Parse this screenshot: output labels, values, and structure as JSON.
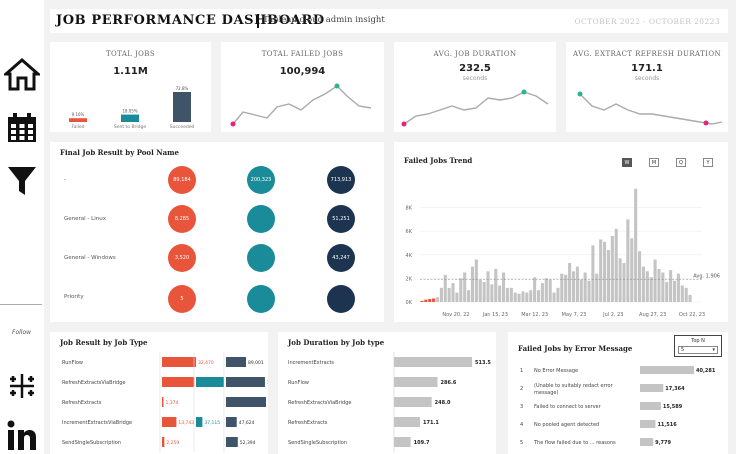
{
  "sidebar": {
    "icons": [
      "home-icon",
      "calendar-icon",
      "filter-icon",
      "tableau-icon",
      "linkedin-icon"
    ],
    "follow_label": "Follow"
  },
  "header": {
    "title": "JOB PERFORMANCE DASHBOARD",
    "subtitle": "Tableau cloud admin insight",
    "date_range": "OCTOBER 2022 - OCTOBER 20223"
  },
  "kpis": {
    "total_jobs": {
      "title": "TOTAL JOBS",
      "value": "1.11M",
      "bars": [
        {
          "label": "Failed",
          "pct": "9.16%",
          "value": 9.16,
          "color": "#e8553a"
        },
        {
          "label": "Sent to Bridge",
          "pct": "18.05%",
          "value": 18.05,
          "color": "#1a8c99"
        },
        {
          "label": "Succeeded",
          "pct": "72.8%",
          "value": 72.8,
          "color": "#3f5468"
        }
      ]
    },
    "failed_jobs": {
      "title": "TOTAL FAILED JOBS",
      "value": "100,994"
    },
    "avg_duration": {
      "title": "AVG. JOB DURATION",
      "value": "232.5",
      "unit": "seconds"
    },
    "avg_extract": {
      "title": "AVG. EXTRACT REFRESH DURATION",
      "value": "171.1",
      "unit": "seconds"
    }
  },
  "pool": {
    "title": "Final Job Result by Pool Name",
    "rows": [
      {
        "label": "-",
        "failed": "89,184",
        "bridge": "200,323",
        "success": "713,913"
      },
      {
        "label": "General - Linux",
        "failed": "8,285",
        "bridge": "",
        "success": "51,251"
      },
      {
        "label": "General - Windows",
        "failed": "3,520",
        "bridge": "",
        "success": "43,247"
      },
      {
        "label": "Priority",
        "failed": "5",
        "bridge": "",
        "success": ""
      }
    ]
  },
  "trend": {
    "title": "Failed Jobs Trend",
    "periods": [
      "W",
      "M",
      "Q",
      "Y"
    ],
    "avg_label": "Avg. 1,906"
  },
  "chart_data": [
    {
      "type": "bar",
      "title": "Failed Jobs Trend",
      "ylabel": "",
      "ylim": [
        0,
        10000
      ],
      "y_ticks": [
        "0K",
        "2K",
        "4K",
        "6K",
        "8K"
      ],
      "x_ticks": [
        "Nov 20, 22",
        "Jan 15, 23",
        "Mar 12, 23",
        "May 7, 23",
        "Jul 2, 23",
        "Aug 27, 23",
        "Oct 22, 23"
      ],
      "average": 1906,
      "values": [
        100,
        200,
        250,
        300,
        400,
        1200,
        2300,
        1200,
        1600,
        800,
        2000,
        2500,
        1000,
        3000,
        3600,
        1900,
        1700,
        2600,
        1500,
        2800,
        1400,
        2500,
        1200,
        1200,
        800,
        700,
        900,
        800,
        1000,
        2100,
        1000,
        1600,
        2000,
        1900,
        800,
        1200,
        2400,
        2300,
        3300,
        2600,
        3000,
        1900,
        2500,
        1800,
        4800,
        2400,
        5300,
        5100,
        4400,
        5600,
        6200,
        3700,
        3300,
        7000,
        5400,
        9600,
        4300,
        3000,
        2600,
        2100,
        3600,
        2800,
        2500,
        1700,
        2700,
        1800,
        2400,
        1400,
        1200,
        600
      ]
    },
    {
      "type": "bar",
      "title": "Job Result by Job Type",
      "categories": [
        "RunFlow",
        "RefreshExtractsViaBridge",
        "RefreshExtracts",
        "IncrementExtractsViaBridge",
        "SendSingleSubscription"
      ],
      "series": [
        {
          "name": "Failed",
          "values": [
            32470,
            31032,
            1374,
            13743,
            2259
          ],
          "labels": [
            "32,470",
            "31,032",
            "1,374",
            "13,743",
            "2,259"
          ]
        },
        {
          "name": "Sent to Bridge",
          "values": [
            0,
            163208,
            0,
            37115,
            0
          ],
          "labels": [
            "",
            "163,208",
            "",
            "37,115",
            ""
          ]
        },
        {
          "name": "Succeeded",
          "values": [
            89001,
            173042,
            177764,
            47624,
            52394
          ],
          "labels": [
            "89,001",
            "173,042",
            "177,764",
            "47,624",
            "52,394"
          ]
        }
      ]
    },
    {
      "type": "bar",
      "title": "Job Duration by Job type",
      "categories": [
        "IncrementExtracts",
        "RunFlow",
        "RefreshExtractsViaBridge",
        "RefreshExtracts",
        "SendSingleSubscription"
      ],
      "values": [
        513.5,
        286.6,
        248.0,
        171.1,
        109.7
      ],
      "labels": [
        "513.5",
        "286.6",
        "248.0",
        "171.1",
        "109.7"
      ]
    },
    {
      "type": "bar",
      "title": "Failed Jobs by Error Message",
      "categories": [
        "No Error Message",
        "(Unable to suitably redact error message)",
        "Failed to connect to server",
        "No pooled agent detected",
        "The flow failed due to ... reasons"
      ],
      "ranks": [
        "1",
        "2",
        "3",
        "4",
        "5"
      ],
      "values": [
        40281,
        17364,
        15589,
        11516,
        9779
      ],
      "labels": [
        "40,281",
        "17,364",
        "15,589",
        "11,516",
        "9,779"
      ]
    }
  ],
  "jobtype": {
    "title": "Job Result by Job Type"
  },
  "duration": {
    "title": "Job Duration by Job type"
  },
  "errors": {
    "title": "Failed Jobs by Error Message",
    "topn_label": "Top N",
    "topn_value": "5"
  }
}
